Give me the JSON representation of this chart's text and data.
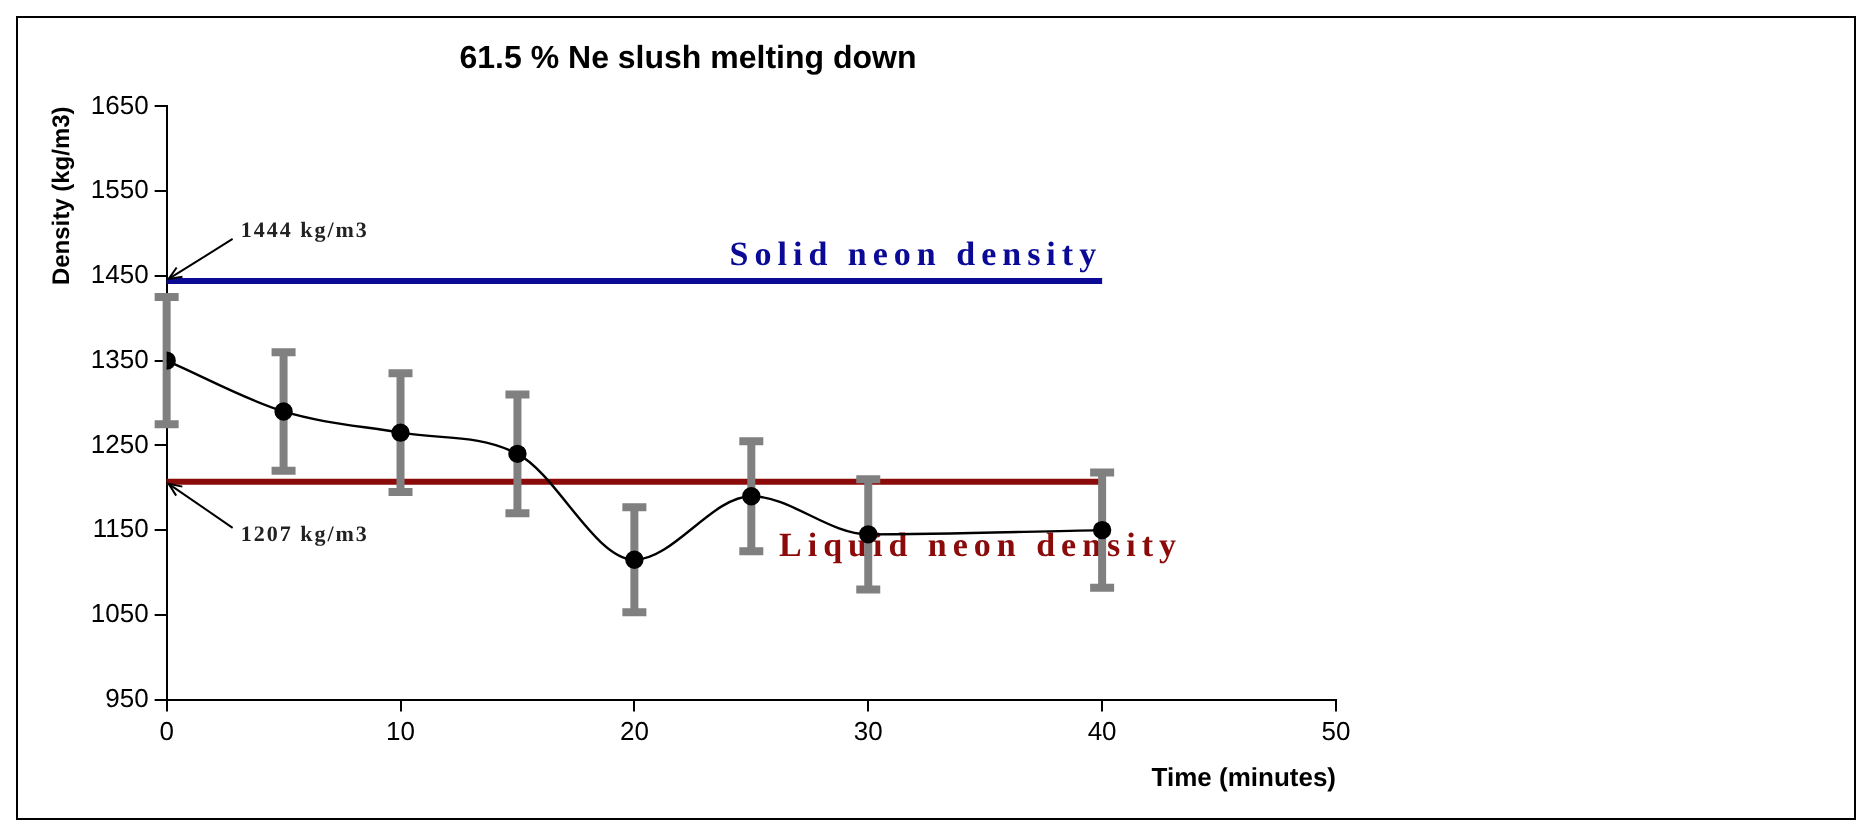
{
  "chart_data": {
    "type": "line",
    "title": "61.5 % Ne slush melting down",
    "xlabel": "Time (minutes)",
    "ylabel": "Density (kg/m3)",
    "x": [
      0,
      5,
      10,
      15,
      20,
      25,
      30,
      40
    ],
    "series": [
      {
        "color": "#000000",
        "values": [
          1350,
          1290,
          1265,
          1240,
          1115,
          1190,
          1145,
          1150
        ],
        "errors": [
          75,
          70,
          70,
          70,
          62,
          65,
          65,
          68
        ]
      }
    ],
    "xlim": [
      0,
      50
    ],
    "xticks": [
      0,
      10,
      20,
      30,
      40,
      50
    ],
    "ylim": [
      950,
      1650
    ],
    "yticks": [
      950,
      1050,
      1150,
      1250,
      1350,
      1450,
      1550,
      1650
    ],
    "ref_lines": [
      {
        "axis": "y",
        "value": 1444,
        "label": "Solid neon density",
        "color": "#0a0a96"
      },
      {
        "axis": "y",
        "value": 1207,
        "label": "Liquid neon density",
        "color": "#8b0a0a"
      }
    ],
    "annotations": [
      {
        "text": "1444 kg/m3",
        "x": 0,
        "y": 1444
      },
      {
        "text": "1207 kg/m3",
        "x": 0,
        "y": 1207
      }
    ],
    "marker": "circle",
    "line_style": "solid",
    "grid": false,
    "legend": false
  }
}
